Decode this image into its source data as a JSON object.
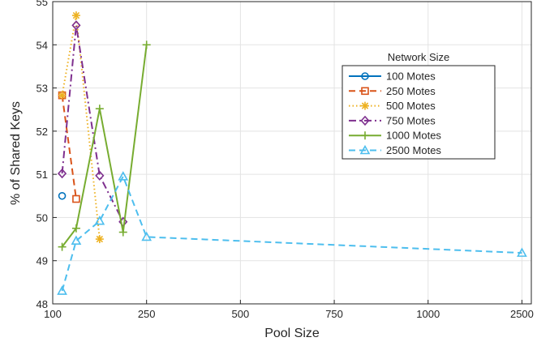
{
  "chart_data": {
    "type": "line",
    "xlabel": "Pool Size",
    "ylabel": "% of Shared Keys",
    "x_categories": [
      "100",
      "250",
      "500",
      "750",
      "1000",
      "2500"
    ],
    "x_tick_positions": [
      0,
      0.5,
      1,
      1.5,
      2,
      2.5
    ],
    "ylim": [
      48,
      55
    ],
    "yticks": [
      48,
      49,
      50,
      51,
      52,
      53,
      54,
      55
    ],
    "grid": true,
    "legend": {
      "title": "Network Size",
      "placement": "upper-right"
    },
    "series": [
      {
        "name": "100 Motes",
        "color": "#0072bd",
        "line": "solid",
        "marker": "circle",
        "x": [
          0.05
        ],
        "y": [
          50.5
        ]
      },
      {
        "name": "250 Motes",
        "color": "#d95319",
        "line": "dashed",
        "marker": "square",
        "x": [
          0.05,
          0.125
        ],
        "y": [
          52.83,
          50.43
        ]
      },
      {
        "name": "500 Motes",
        "color": "#edb120",
        "line": "dotted",
        "marker": "asterisk",
        "x": [
          0.05,
          0.125,
          0.25
        ],
        "y": [
          52.83,
          54.68,
          49.5
        ]
      },
      {
        "name": "750 Motes",
        "color": "#7e2f8e",
        "line": "dashdot",
        "marker": "diamond",
        "x": [
          0.05,
          0.125,
          0.25,
          0.375
        ],
        "y": [
          51.02,
          54.45,
          50.97,
          49.9
        ]
      },
      {
        "name": "1000 Motes",
        "color": "#77ac30",
        "line": "solid",
        "marker": "plus",
        "x": [
          0.05,
          0.125,
          0.25,
          0.375,
          0.5
        ],
        "y": [
          49.32,
          49.75,
          52.52,
          49.66,
          54.0
        ]
      },
      {
        "name": "2500 Motes",
        "color": "#4dbeee",
        "line": "dashed",
        "marker": "triangle",
        "x": [
          0.05,
          0.125,
          0.25,
          0.375,
          0.5,
          2.5
        ],
        "y": [
          48.3,
          49.46,
          49.92,
          50.95,
          49.55,
          49.18
        ]
      }
    ]
  }
}
